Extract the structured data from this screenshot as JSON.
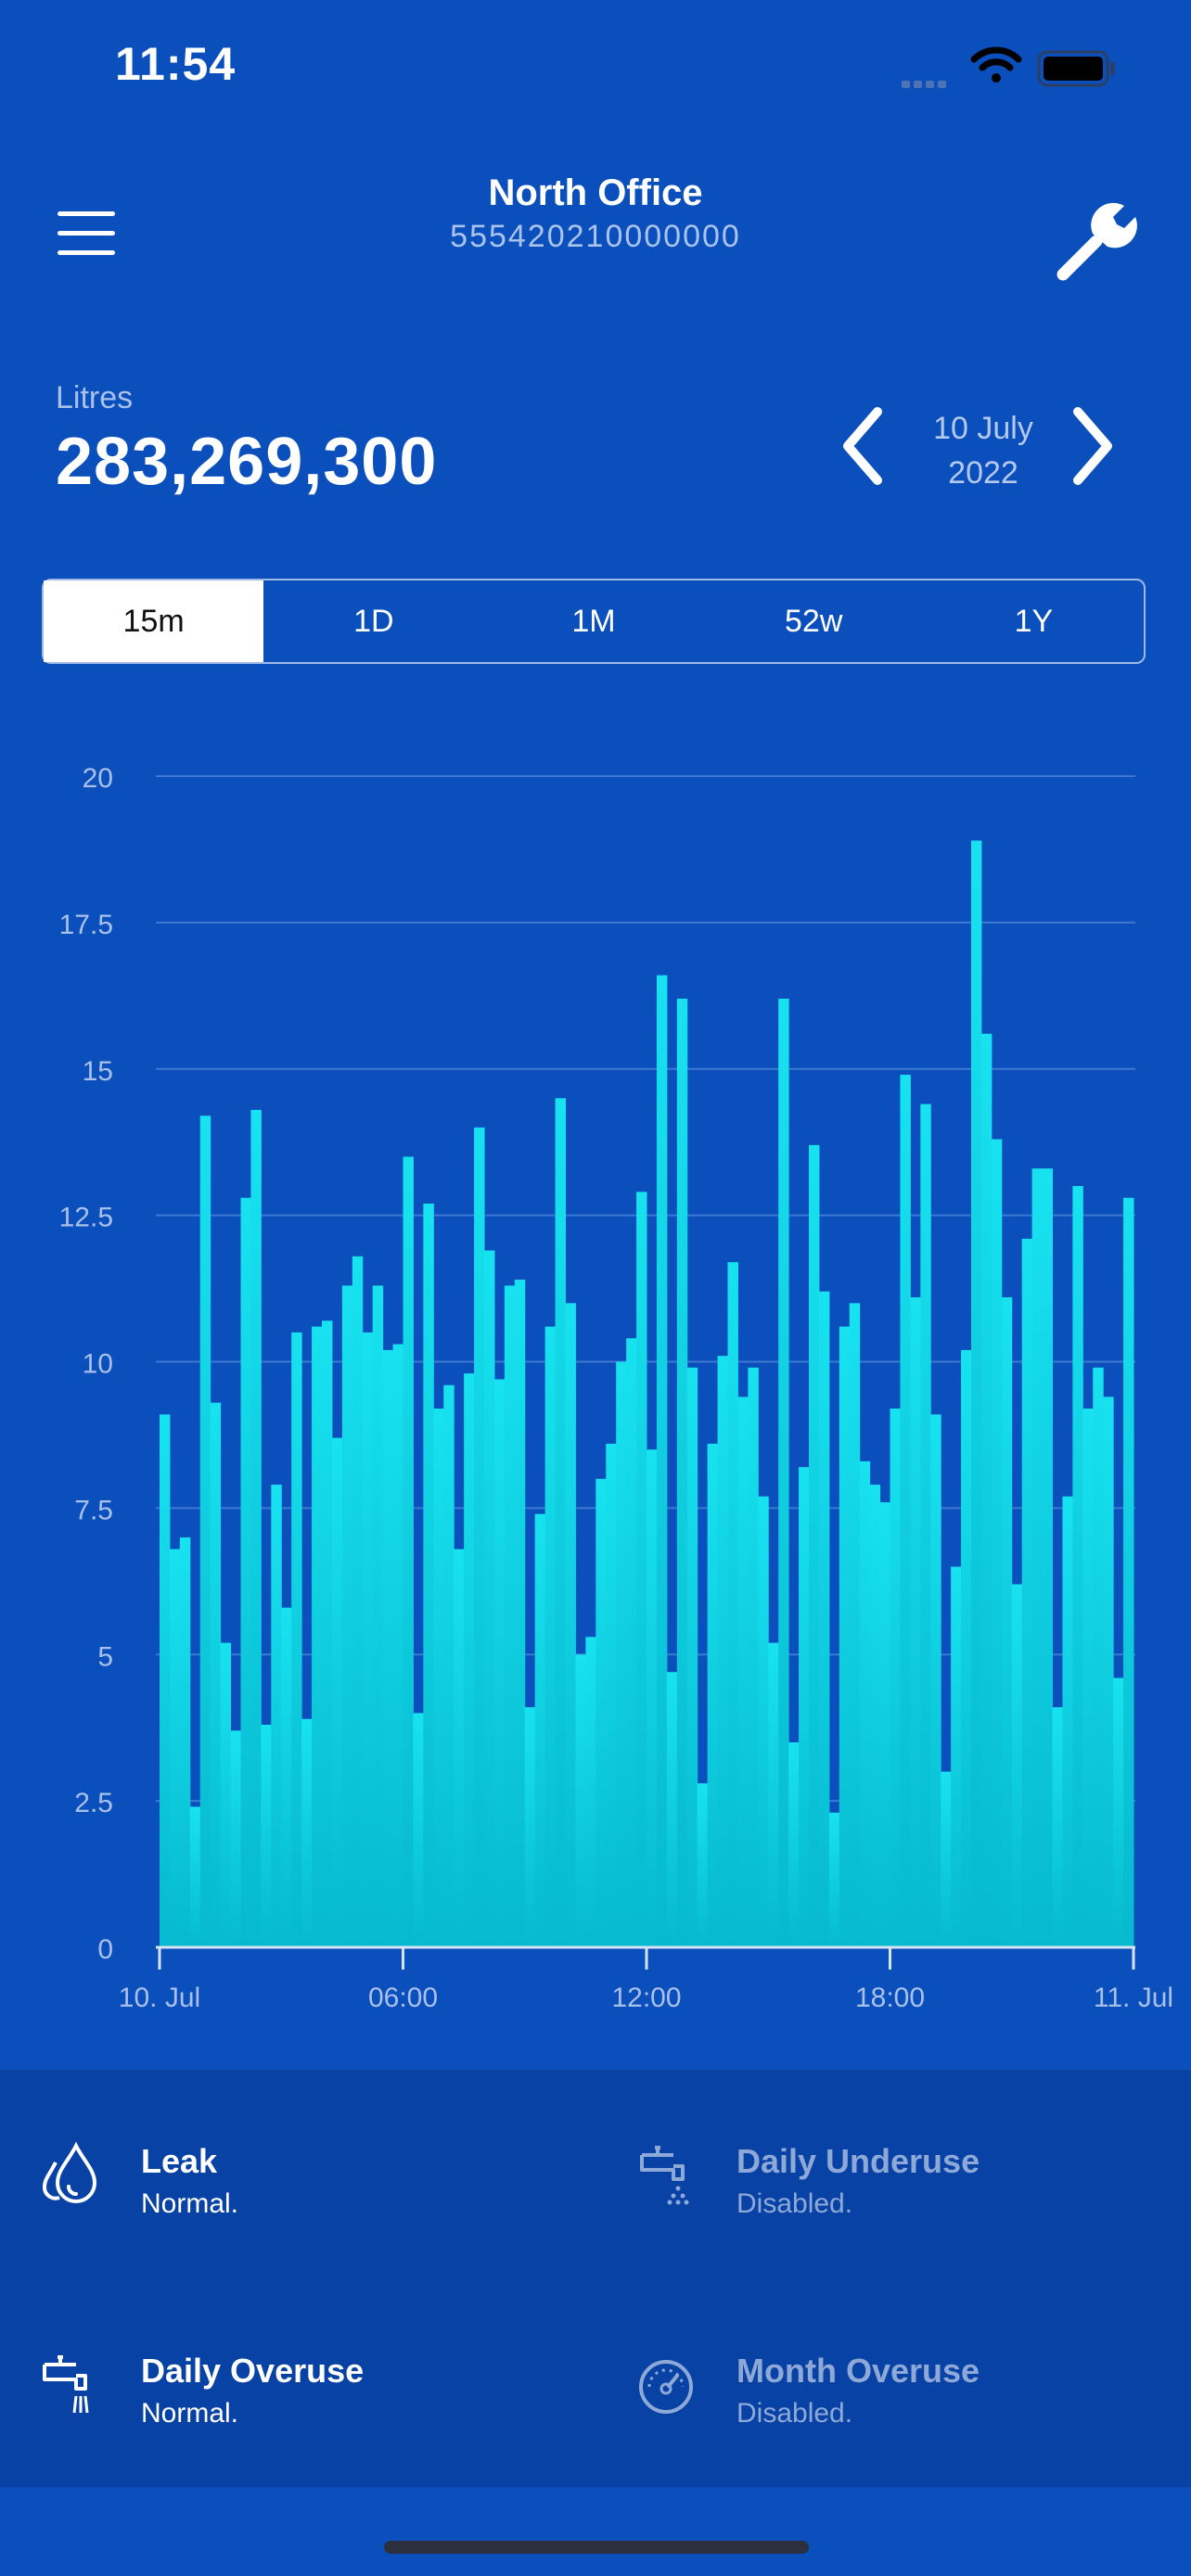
{
  "status_bar": {
    "time": "11:54"
  },
  "header": {
    "title": "North Office",
    "meter_id": "555420210000000"
  },
  "summary": {
    "label": "Litres",
    "value": "283,269,300"
  },
  "date_nav": {
    "line1": "10 July",
    "line2": "2022"
  },
  "tabs": [
    {
      "label": "15m",
      "active": true
    },
    {
      "label": "1D",
      "active": false
    },
    {
      "label": "1M",
      "active": false
    },
    {
      "label": "52w",
      "active": false
    },
    {
      "label": "1Y",
      "active": false
    }
  ],
  "chart_data": {
    "type": "bar",
    "title": "",
    "xlabel": "",
    "ylabel": "",
    "ylim": [
      0,
      20
    ],
    "yticks": [
      "0",
      "2.5",
      "5",
      "7.5",
      "10",
      "12.5",
      "15",
      "17.5",
      "20"
    ],
    "xtick_labels": [
      "10. Jul",
      "06:00",
      "12:00",
      "18:00",
      "11. Jul"
    ],
    "xlim_hours": [
      0,
      24
    ],
    "grid": true,
    "bar_color": "#14d6e8",
    "interval_minutes": 15,
    "values": [
      9.1,
      6.8,
      7.0,
      2.4,
      14.2,
      9.3,
      5.2,
      3.7,
      12.8,
      14.3,
      3.8,
      7.9,
      5.8,
      10.5,
      3.9,
      10.6,
      10.7,
      8.7,
      11.3,
      11.8,
      10.5,
      11.3,
      10.2,
      10.3,
      13.5,
      4.0,
      12.7,
      9.2,
      9.6,
      6.8,
      9.8,
      14.0,
      11.9,
      9.7,
      11.3,
      11.4,
      4.1,
      7.4,
      10.6,
      14.5,
      11.0,
      5.0,
      5.3,
      8.0,
      8.6,
      10.0,
      10.4,
      12.9,
      8.5,
      16.6,
      4.7,
      16.2,
      9.9,
      2.8,
      8.6,
      10.1,
      11.7,
      9.4,
      9.9,
      7.7,
      5.2,
      16.2,
      3.5,
      8.2,
      13.7,
      11.2,
      2.3,
      10.6,
      11.0,
      8.3,
      7.9,
      7.6,
      9.2,
      14.9,
      11.1,
      14.4,
      9.1,
      3.0,
      6.5,
      10.2,
      18.9,
      15.6,
      13.8,
      11.1,
      6.2,
      12.1,
      13.3,
      13.3,
      4.1,
      7.7,
      13.0,
      9.2,
      9.9,
      9.4,
      4.6,
      12.8
    ]
  },
  "alerts": [
    {
      "title": "Leak",
      "status": "Normal.",
      "icon": "water-drops-icon",
      "enabled": true
    },
    {
      "title": "Daily Underuse",
      "status": "Disabled.",
      "icon": "faucet-drip-icon",
      "enabled": false
    },
    {
      "title": "Daily Overuse",
      "status": "Normal.",
      "icon": "faucet-flow-icon",
      "enabled": true
    },
    {
      "title": "Month Overuse",
      "status": "Disabled.",
      "icon": "gauge-icon",
      "enabled": false
    }
  ],
  "colors": {
    "background": "#0a4fbc",
    "panel": "#0742a4",
    "bar": "#14d6e8",
    "grid": "#3f78d2"
  }
}
